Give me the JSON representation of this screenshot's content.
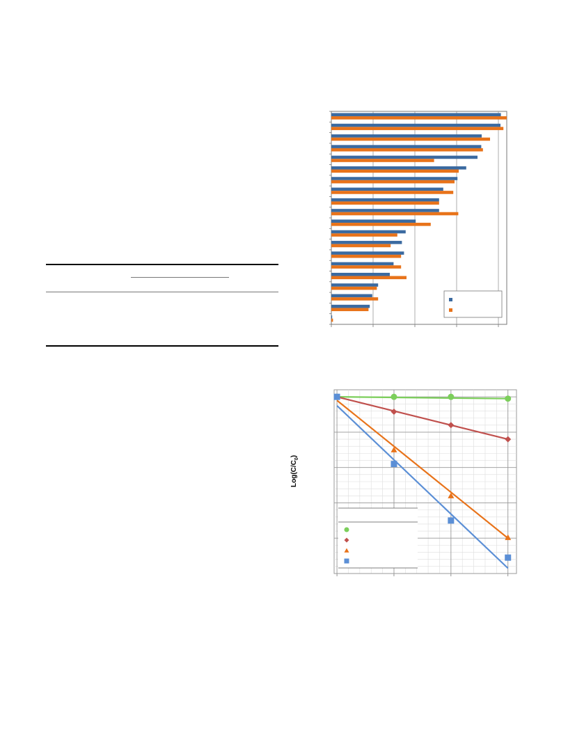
{
  "table": {},
  "chart_data": [
    {
      "type": "bar",
      "orientation": "horizontal",
      "categories": [
        "",
        "",
        "",
        "",
        "",
        "",
        "",
        "",
        "",
        "",
        "",
        "",
        "",
        "",
        "",
        "",
        "",
        "",
        "",
        ""
      ],
      "series": [
        {
          "color": "#3b6aa0",
          "values": [
            0.2,
            9.2,
            9.8,
            11.2,
            14.0,
            14.9,
            17.4,
            16.9,
            17.8,
            20.2,
            25.8,
            25.8,
            26.8,
            30.2,
            32.3,
            35.0,
            35.9,
            36.0,
            40.5,
            40.6
          ]
        },
        {
          "color": "#e8731a",
          "values": [
            0.4,
            8.9,
            11.2,
            10.9,
            18.0,
            16.7,
            16.7,
            14.2,
            15.8,
            23.8,
            30.4,
            25.8,
            29.2,
            29.5,
            30.5,
            24.6,
            36.3,
            38.0,
            41.2,
            42.0
          ]
        }
      ],
      "grid": true,
      "legend": "bottom-right"
    },
    {
      "type": "line",
      "x": [
        0,
        1,
        2,
        3
      ],
      "ylim": [
        -5,
        0.2
      ],
      "series": [
        {
          "color": "#7ccf5b",
          "marker": "circle",
          "values": [
            0,
            0,
            0,
            -0.05
          ],
          "fit": [
            [
              0,
              0
            ],
            [
              3,
              -0.05
            ]
          ]
        },
        {
          "color": "#c0504d",
          "marker": "diamond",
          "values": [
            0,
            -0.42,
            -0.8,
            -1.2
          ],
          "fit": [
            [
              0,
              0
            ],
            [
              3,
              -1.2
            ]
          ]
        },
        {
          "color": "#e8731a",
          "marker": "triangle",
          "values": [
            0,
            -1.5,
            -2.8,
            -3.98
          ],
          "fit": [
            [
              0,
              -0.1
            ],
            [
              3,
              -4.0
            ]
          ]
        },
        {
          "color": "#5b8fd6",
          "marker": "square",
          "values": [
            0,
            -1.9,
            -3.5,
            -4.55
          ],
          "fit": [
            [
              0,
              -0.25
            ],
            [
              3,
              -4.85
            ]
          ]
        }
      ],
      "ylabel": "Log(C/C0)",
      "grid": true,
      "legend": "bottom-left"
    }
  ]
}
